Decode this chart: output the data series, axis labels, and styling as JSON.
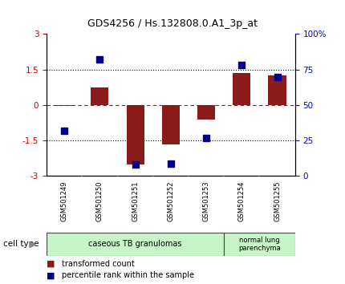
{
  "title": "GDS4256 / Hs.132808.0.A1_3p_at",
  "samples": [
    "GSM501249",
    "GSM501250",
    "GSM501251",
    "GSM501252",
    "GSM501253",
    "GSM501254",
    "GSM501255"
  ],
  "transformed_count": [
    -0.05,
    0.75,
    -2.5,
    -1.65,
    -0.6,
    1.35,
    1.25
  ],
  "percentile_rank": [
    32,
    82,
    8,
    9,
    27,
    78,
    70
  ],
  "ylim_left": [
    -3,
    3
  ],
  "ylim_right": [
    0,
    100
  ],
  "yticks_left": [
    -3,
    -1.5,
    0,
    1.5,
    3
  ],
  "yticks_right": [
    0,
    25,
    50,
    75,
    100
  ],
  "ytick_labels_left": [
    "-3",
    "-1.5",
    "0",
    "1.5",
    "3"
  ],
  "ytick_labels_right": [
    "0",
    "25",
    "50",
    "75",
    "100%"
  ],
  "hlines_dotted": [
    1.5,
    -1.5
  ],
  "hline_dashed_red": 0,
  "bar_color": "#8B1A1A",
  "dot_color": "#00008B",
  "zero_line_color": "#CC0000",
  "group1_label": "caseous TB granulomas",
  "group1_n": 5,
  "group2_label": "normal lung\nparenchyma",
  "group2_n": 2,
  "group_color": "#c8f5c8",
  "cell_type_label": "cell type",
  "legend_bar_label": "transformed count",
  "legend_dot_label": "percentile rank within the sample",
  "background_color": "#ffffff",
  "tick_label_color_left": "#CC0000",
  "tick_label_color_right": "#0000CC",
  "sample_label_bg": "#C8C8C8",
  "bar_width": 0.5,
  "dot_size": 30
}
